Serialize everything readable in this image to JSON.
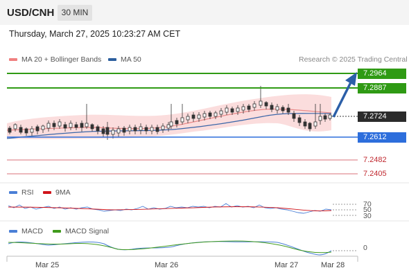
{
  "header": {
    "pair": "USD/CNH",
    "timeframe": "30 MIN"
  },
  "timestamp": "Thursday, March 27, 2025 10:23:27 AM CET",
  "legend": {
    "ma20": {
      "label": "MA 20 + Bollinger Bands",
      "color": "#f08080"
    },
    "ma50": {
      "label": "MA 50",
      "color": "#2c5f9e"
    }
  },
  "credit": "Research © 2025 Trading Central",
  "levels": {
    "r2": "7.2964",
    "r1": "7.2887",
    "last": "7.2724",
    "pivot": "7.2612",
    "s1": "7.2482",
    "s2": "7.2405"
  },
  "rsi": {
    "label": "RSI",
    "ma_label": "9MA",
    "color": "#4a7fd6",
    "ma_color": "#d0141a",
    "ticks": [
      "70",
      "50",
      "30"
    ]
  },
  "macd": {
    "label": "MACD",
    "signal_label": "MACD Signal",
    "color": "#4a7fd6",
    "signal_color": "#3f9a1c",
    "zero_tick": "0"
  },
  "x_axis": [
    "Mar 25",
    "Mar 26",
    "Mar 27",
    "Mar 28"
  ],
  "colors": {
    "resistance": "#2f9a14",
    "pivot": "#2d6edc",
    "support": "#c0282f",
    "arrow": "#2c5fa8"
  }
}
